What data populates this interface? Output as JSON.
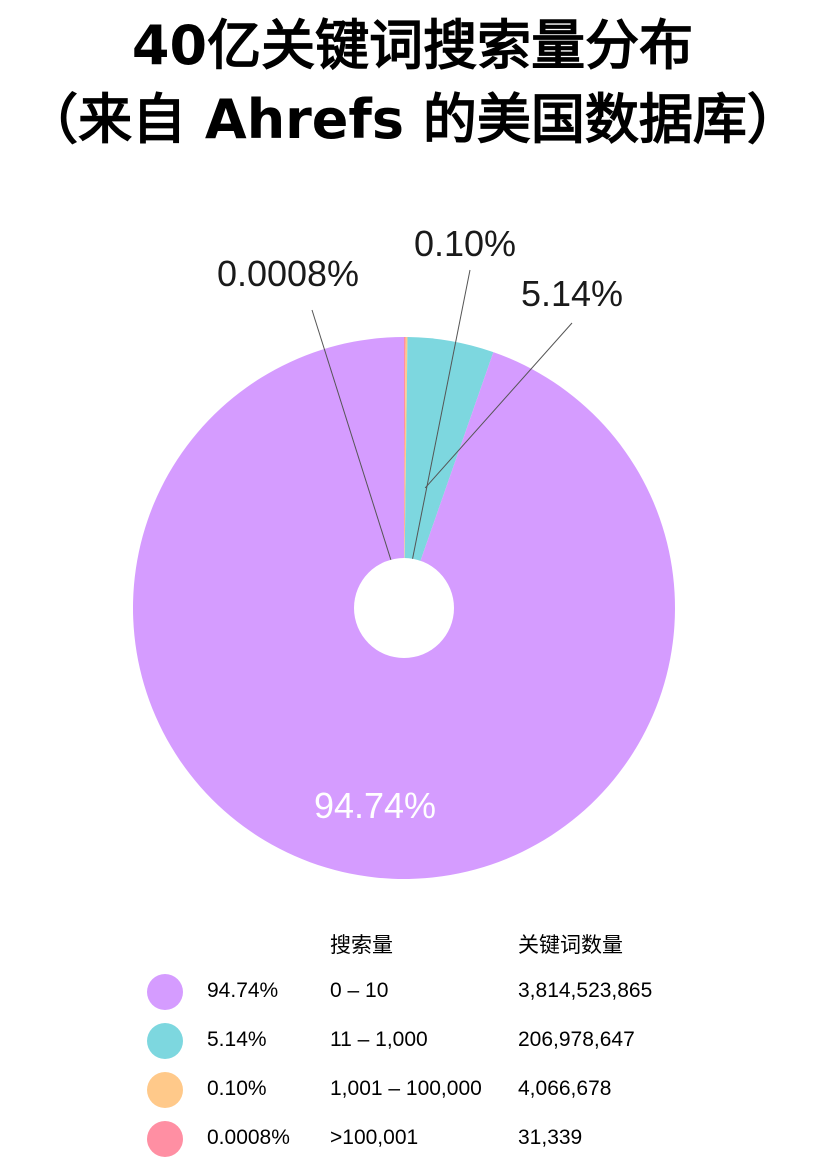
{
  "title_line1": "40亿关键词搜索量分布",
  "title_line2": "（来自 Ahrefs 的美国数据库）",
  "legend": {
    "col_search_volume": "搜索量",
    "col_keyword_count": "关键词数量",
    "rows": [
      {
        "pct": "94.74%",
        "range": "0 – 10",
        "count": "3,814,523,865",
        "color": "#D59CFF"
      },
      {
        "pct": "5.14%",
        "range": "11 – 1,000",
        "count": "206,978,647",
        "color": "#7DD7DF"
      },
      {
        "pct": "0.10%",
        "range": "1,001 – 100,000",
        "count": "4,066,678",
        "color": "#FFC98A"
      },
      {
        "pct": "0.0008%",
        "range": ">100,001",
        "count": "31,339",
        "color": "#FF8FA3"
      }
    ]
  },
  "chart_data": {
    "type": "pie",
    "title": "40亿关键词搜索量分布 （来自 Ahrefs 的美国数据库）",
    "donut": true,
    "slices": [
      {
        "label": "0.0008%",
        "value": 0.0008,
        "color": "#FF8FA3"
      },
      {
        "label": "0.10%",
        "value": 0.1,
        "color": "#FFC98A"
      },
      {
        "label": "5.14%",
        "value": 5.14,
        "color": "#7DD7DF"
      },
      {
        "label": "94.74%",
        "value": 94.74,
        "color": "#D59CFF"
      }
    ]
  }
}
